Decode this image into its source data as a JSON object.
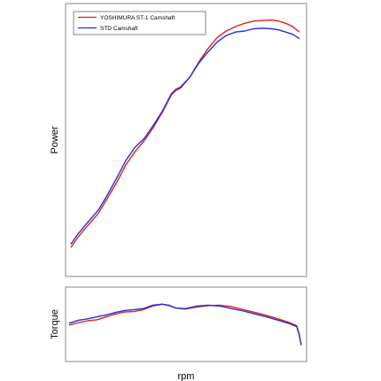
{
  "chart_data": [
    {
      "type": "line",
      "panel": "power",
      "ylabel": "Power",
      "xlabel": "",
      "xlim": [
        0,
        100
      ],
      "ylim": [
        0,
        100
      ],
      "grid": false,
      "legend_position": "top-left",
      "series": [
        {
          "name": "YOSHIMURA ST-1 Camshaft",
          "color": "#e0201b",
          "x": [
            0,
            3,
            7,
            12,
            16,
            20,
            24,
            28,
            32,
            36,
            40,
            42,
            44,
            46,
            48,
            52,
            56,
            60,
            64,
            68,
            72,
            76,
            80,
            84,
            88,
            91,
            94,
            97,
            100
          ],
          "y": [
            1.5,
            6,
            11,
            17,
            24,
            31,
            39,
            45,
            50,
            56,
            63,
            67,
            71,
            73,
            74,
            79,
            86,
            92,
            97,
            100,
            102,
            103.5,
            104.5,
            104.8,
            105,
            104.5,
            103.5,
            102,
            99.5
          ]
        },
        {
          "name": "STD Camshaft",
          "color": "#2430d8",
          "x": [
            0,
            3,
            7,
            12,
            16,
            20,
            24,
            28,
            32,
            36,
            40,
            42,
            44,
            46,
            48,
            52,
            56,
            60,
            64,
            68,
            72,
            76,
            80,
            84,
            88,
            91,
            94,
            97,
            100
          ],
          "y": [
            3,
            7.5,
            12.5,
            18.5,
            25.5,
            33,
            41,
            47,
            51,
            57,
            63.5,
            67.5,
            71.5,
            73.5,
            74.5,
            79,
            85.5,
            90.5,
            95,
            98,
            99.5,
            100,
            101,
            101.3,
            101,
            100.5,
            99.5,
            98.5,
            96.5
          ]
        }
      ]
    },
    {
      "type": "line",
      "panel": "torque",
      "ylabel": "Torque",
      "xlabel": "rpm",
      "xlim": [
        0,
        100
      ],
      "ylim": [
        0,
        100
      ],
      "grid": false,
      "series": [
        {
          "name": "YOSHIMURA ST-1 Camshaft",
          "color": "#e0201b",
          "x": [
            0,
            4,
            8,
            12,
            16,
            20,
            24,
            28,
            32,
            36,
            40,
            43,
            46,
            50,
            55,
            60,
            65,
            70,
            75,
            80,
            85,
            90,
            95,
            98,
            99,
            100
          ],
          "y": [
            31,
            36,
            40,
            42,
            48,
            54,
            58,
            59,
            63,
            70,
            74,
            72,
            66,
            64,
            68,
            71,
            72,
            69,
            63,
            57,
            51,
            44,
            36,
            30,
            15,
            -10
          ]
        },
        {
          "name": "STD Camshaft",
          "color": "#2430d8",
          "x": [
            0,
            4,
            8,
            12,
            16,
            20,
            24,
            28,
            32,
            36,
            40,
            43,
            46,
            50,
            55,
            60,
            65,
            70,
            75,
            80,
            85,
            90,
            95,
            98,
            99,
            100
          ],
          "y": [
            35,
            41,
            44,
            48,
            52,
            57,
            61,
            63,
            65,
            72,
            74,
            71,
            66,
            65,
            70,
            72,
            70,
            65,
            60,
            54,
            48,
            41,
            34,
            28,
            13,
            -10
          ]
        }
      ]
    }
  ]
}
